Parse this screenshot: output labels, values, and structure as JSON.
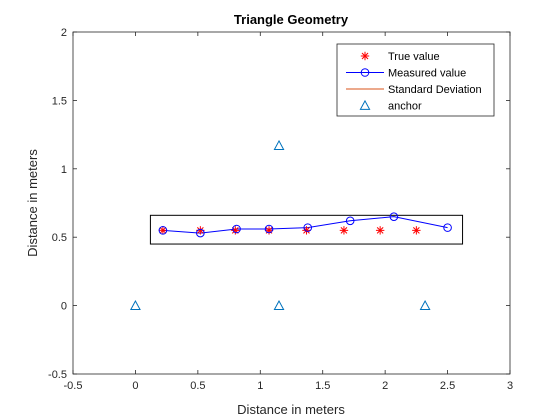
{
  "chart_data": {
    "type": "scatter",
    "title": "Triangle Geometry",
    "xlabel": "Distance in meters",
    "ylabel": "Distance in meters",
    "xlim": [
      -0.5,
      3
    ],
    "ylim": [
      -0.5,
      2
    ],
    "xticks": [
      -0.5,
      0,
      0.5,
      1,
      1.5,
      2,
      2.5,
      3
    ],
    "xtick_labels": [
      "-0.5",
      "0",
      "0.5",
      "1",
      "1.5",
      "2",
      "2.5",
      "3"
    ],
    "yticks": [
      -0.5,
      0,
      0.5,
      1,
      1.5,
      2
    ],
    "ytick_labels": [
      "-0.5",
      "0",
      "0.5",
      "1",
      "1.5",
      "2"
    ],
    "grid": false,
    "legend_position": "top-right",
    "series": [
      {
        "name": "True value",
        "marker": "asterisk",
        "color": "#ff0000",
        "points": [
          {
            "x": 0.22,
            "y": 0.55
          },
          {
            "x": 0.52,
            "y": 0.55
          },
          {
            "x": 0.8,
            "y": 0.55
          },
          {
            "x": 1.07,
            "y": 0.55
          },
          {
            "x": 1.37,
            "y": 0.55
          },
          {
            "x": 1.67,
            "y": 0.55
          },
          {
            "x": 1.96,
            "y": 0.55
          },
          {
            "x": 2.25,
            "y": 0.55
          }
        ]
      },
      {
        "name": "Measured value",
        "marker": "circle-line",
        "color": "#0000ff",
        "points": [
          {
            "x": 0.22,
            "y": 0.55
          },
          {
            "x": 0.52,
            "y": 0.53
          },
          {
            "x": 0.81,
            "y": 0.56
          },
          {
            "x": 1.07,
            "y": 0.56
          },
          {
            "x": 1.38,
            "y": 0.57
          },
          {
            "x": 1.72,
            "y": 0.62
          },
          {
            "x": 2.07,
            "y": 0.65
          },
          {
            "x": 2.5,
            "y": 0.57
          }
        ]
      },
      {
        "name": "Standard Deviation",
        "marker": "line",
        "color": "#d95319",
        "points": []
      },
      {
        "name": "anchor",
        "marker": "triangle",
        "color": "#0072bd",
        "points": [
          {
            "x": 0,
            "y": 0
          },
          {
            "x": 1.15,
            "y": 0
          },
          {
            "x": 2.32,
            "y": 0
          },
          {
            "x": 1.15,
            "y": 1.17
          }
        ]
      }
    ],
    "annotation_rect": {
      "x0": 0.12,
      "x1": 2.62,
      "y0": 0.45,
      "y1": 0.66,
      "color": "#000000"
    }
  }
}
